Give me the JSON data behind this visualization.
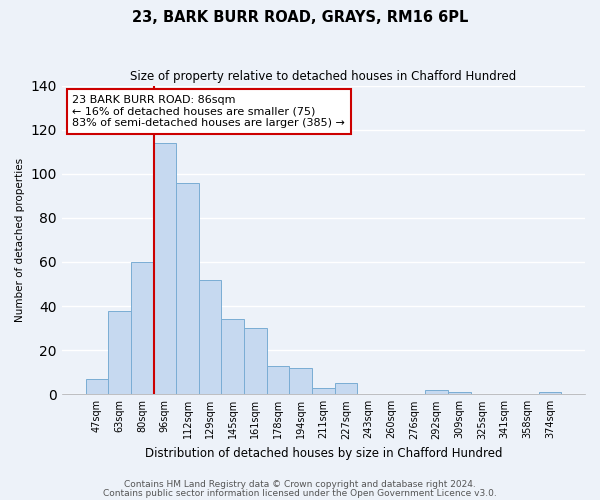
{
  "title": "23, BARK BURR ROAD, GRAYS, RM16 6PL",
  "subtitle": "Size of property relative to detached houses in Chafford Hundred",
  "xlabel": "Distribution of detached houses by size in Chafford Hundred",
  "ylabel": "Number of detached properties",
  "bar_labels": [
    "47sqm",
    "63sqm",
    "80sqm",
    "96sqm",
    "112sqm",
    "129sqm",
    "145sqm",
    "161sqm",
    "178sqm",
    "194sqm",
    "211sqm",
    "227sqm",
    "243sqm",
    "260sqm",
    "276sqm",
    "292sqm",
    "309sqm",
    "325sqm",
    "341sqm",
    "358sqm",
    "374sqm"
  ],
  "bar_values": [
    7,
    38,
    60,
    114,
    96,
    52,
    34,
    30,
    13,
    12,
    3,
    5,
    0,
    0,
    0,
    2,
    1,
    0,
    0,
    0,
    1
  ],
  "bar_color": "#c6d9f0",
  "bar_edge_color": "#7aadd4",
  "vline_color": "#cc0000",
  "ylim": [
    0,
    140
  ],
  "yticks": [
    0,
    20,
    40,
    60,
    80,
    100,
    120,
    140
  ],
  "annotation_line1": "23 BARK BURR ROAD: 86sqm",
  "annotation_line2": "← 16% of detached houses are smaller (75)",
  "annotation_line3": "83% of semi-detached houses are larger (385) →",
  "annotation_box_color": "white",
  "annotation_box_edge": "#cc0000",
  "footer1": "Contains HM Land Registry data © Crown copyright and database right 2024.",
  "footer2": "Contains public sector information licensed under the Open Government Licence v3.0.",
  "background_color": "#edf2f9",
  "grid_color": "white",
  "title_fontsize": 10.5,
  "subtitle_fontsize": 8.5,
  "ylabel_fontsize": 7.5,
  "xlabel_fontsize": 8.5,
  "tick_fontsize": 7,
  "annotation_fontsize": 8,
  "footer_fontsize": 6.5
}
